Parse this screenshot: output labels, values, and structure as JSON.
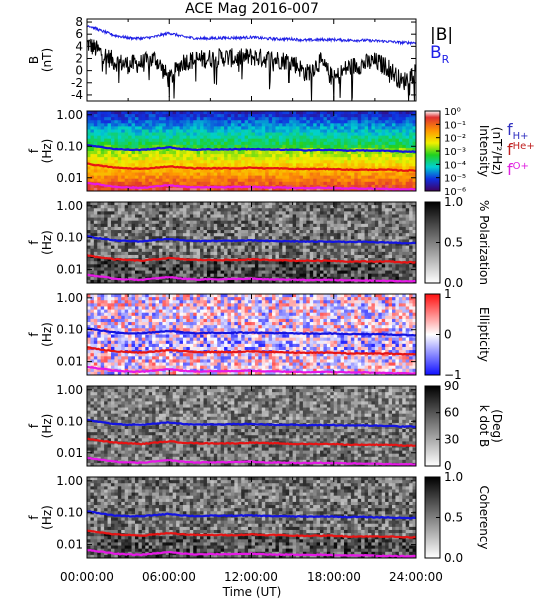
{
  "title": "ACE Mag 2016-007",
  "x_axis": {
    "label": "Time (UT)",
    "ticks": [
      "00:00:00",
      "06:00:00",
      "12:00:00",
      "18:00:00",
      "24:00:00"
    ],
    "range_hours": [
      0,
      24
    ]
  },
  "colors": {
    "B_total": "#000000",
    "B_R": "#1f1fe6",
    "fH": "#1414e0",
    "fHe": "#e61414",
    "fO": "#e619e6",
    "legend_fH": "#3030c0",
    "legend_fHe": "#c02020",
    "legend_fO": "#e020e0"
  },
  "chart_data": [
    {
      "type": "line",
      "ylabel": "B\n(nT)",
      "ylim": [
        -5,
        8.5
      ],
      "yticks": [
        "8",
        "6",
        "4",
        "2",
        "0",
        "-2",
        "-4"
      ],
      "legend": [
        "|B|",
        "B_R"
      ],
      "series": [
        {
          "name": "|B|",
          "x_hours": [
            0,
            1,
            2,
            3,
            4,
            5,
            6,
            7,
            8,
            9,
            10,
            11,
            12,
            13,
            14,
            15,
            16,
            17,
            18,
            19,
            20,
            21,
            22,
            23,
            24
          ],
          "values": [
            7.5,
            6.6,
            5.8,
            5.4,
            5.3,
            5.6,
            6.2,
            5.6,
            5.3,
            5.3,
            5.4,
            5.4,
            5.5,
            5.3,
            5.2,
            5.2,
            5.0,
            5.1,
            5.1,
            5.0,
            5.0,
            4.9,
            4.8,
            4.6,
            4.6
          ]
        },
        {
          "name": "B_R",
          "x_hours": [
            0,
            1,
            2,
            3,
            4,
            5,
            6,
            7,
            8,
            9,
            10,
            11,
            12,
            13,
            14,
            15,
            16,
            17,
            18,
            19,
            20,
            21,
            22,
            23,
            24
          ],
          "values": [
            4.5,
            3.0,
            1.5,
            1.0,
            1.2,
            2.0,
            -1.5,
            1.5,
            1.8,
            2.0,
            2.2,
            2.0,
            2.3,
            2.0,
            1.8,
            1.5,
            -0.5,
            1.5,
            -1.5,
            0.5,
            1.0,
            1.5,
            0.5,
            -2.0,
            0.0
          ]
        }
      ]
    },
    {
      "type": "heatmap",
      "ylabel": "f\n(Hz)",
      "yticks": [
        "1.00",
        "0.10",
        "0.01"
      ],
      "colorbar": {
        "label": "Intensity\n(nT²/Hz)",
        "ticks": [
          "10⁰",
          "10⁻¹",
          "10⁻²",
          "10⁻³",
          "10⁻⁴",
          "10⁻⁵",
          "10⁻⁶"
        ],
        "scale": "rainbow"
      },
      "legend": [
        "f_H+",
        "f_He+",
        "f_O+"
      ]
    },
    {
      "type": "heatmap",
      "ylabel": "f\n(Hz)",
      "yticks": [
        "1.00",
        "0.10",
        "0.01"
      ],
      "colorbar": {
        "label": "% Polarization",
        "ticks": [
          "1.0",
          "0.5",
          "0.0"
        ],
        "scale": "gray"
      }
    },
    {
      "type": "heatmap",
      "ylabel": "f\n(Hz)",
      "yticks": [
        "1.00",
        "0.10",
        "0.01"
      ],
      "colorbar": {
        "label": "Ellipticity",
        "ticks": [
          "1",
          "0",
          "−1"
        ],
        "scale": "bwr"
      }
    },
    {
      "type": "heatmap",
      "ylabel": "f\n(Hz)",
      "yticks": [
        "1.00",
        "0.10",
        "0.01"
      ],
      "colorbar": {
        "label": "k dot B\n(Deg)",
        "ticks": [
          "90",
          "60",
          "30",
          "0"
        ],
        "scale": "gray"
      }
    },
    {
      "type": "heatmap",
      "ylabel": "f\n(Hz)",
      "yticks": [
        "1.00",
        "0.10",
        "0.01"
      ],
      "colorbar": {
        "label": "Coherency",
        "ticks": [
          "1.0",
          "0.5",
          "0.0"
        ],
        "scale": "gray"
      }
    }
  ],
  "gyrofrequency_lines": {
    "x_hours": [
      0,
      1,
      2,
      3,
      4,
      5,
      6,
      7,
      8,
      9,
      10,
      11,
      12,
      13,
      14,
      15,
      16,
      17,
      18,
      19,
      20,
      21,
      22,
      23,
      24
    ],
    "fH_Hz": [
      0.11,
      0.095,
      0.082,
      0.078,
      0.077,
      0.085,
      0.092,
      0.082,
      0.078,
      0.08,
      0.08,
      0.081,
      0.082,
      0.079,
      0.078,
      0.077,
      0.075,
      0.076,
      0.076,
      0.073,
      0.074,
      0.072,
      0.071,
      0.068,
      0.068
    ],
    "fHe_Hz": [
      0.028,
      0.024,
      0.021,
      0.02,
      0.019,
      0.021,
      0.023,
      0.021,
      0.02,
      0.02,
      0.02,
      0.02,
      0.021,
      0.02,
      0.02,
      0.019,
      0.019,
      0.019,
      0.019,
      0.018,
      0.018,
      0.018,
      0.018,
      0.017,
      0.017
    ],
    "fO_Hz": [
      0.0069,
      0.006,
      0.0052,
      0.0049,
      0.0048,
      0.0053,
      0.0058,
      0.0052,
      0.0049,
      0.005,
      0.005,
      0.0051,
      0.0052,
      0.0049,
      0.0049,
      0.0048,
      0.0047,
      0.0048,
      0.0047,
      0.0046,
      0.0046,
      0.0045,
      0.0044,
      0.0043,
      0.0043
    ]
  }
}
